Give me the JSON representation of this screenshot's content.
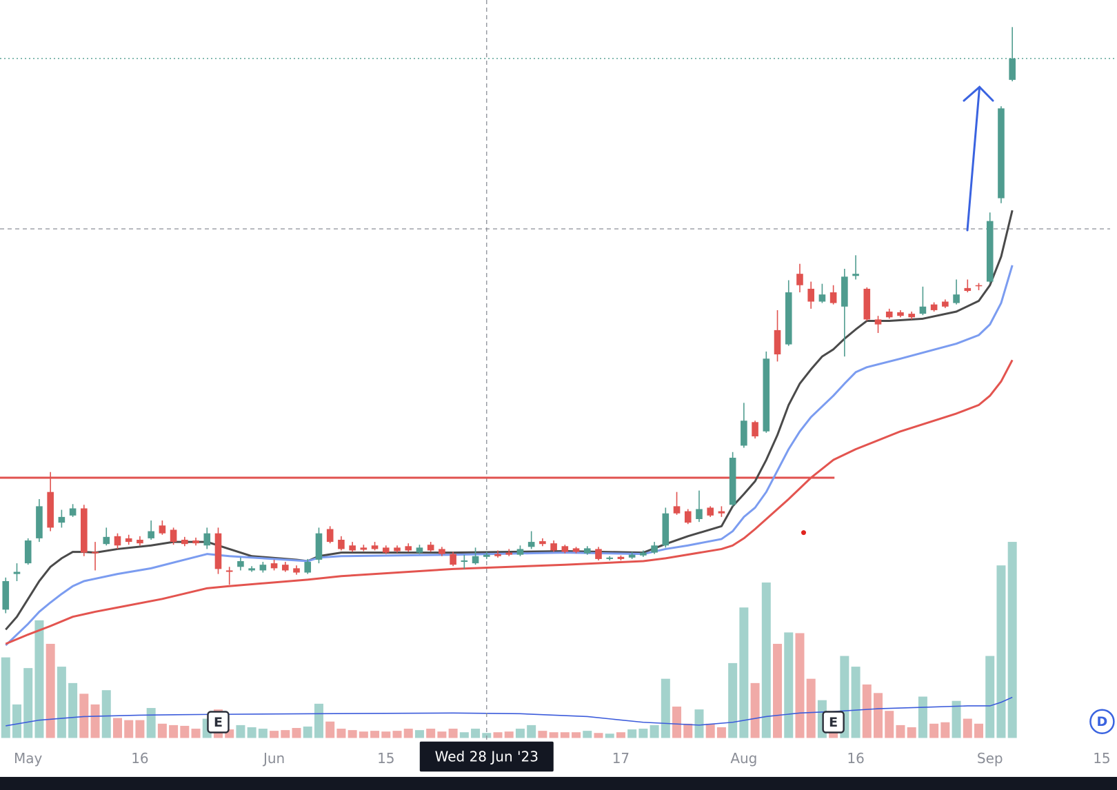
{
  "chart_data": {
    "type": "candlestick",
    "xlim": [
      -0.51,
      99.36
    ],
    "ylim": [
      0,
      104
    ],
    "xticks": [
      {
        "value": 2,
        "label": "May"
      },
      {
        "value": 12,
        "label": "16"
      },
      {
        "value": 24,
        "label": "Jun"
      },
      {
        "value": 34,
        "label": "15"
      },
      {
        "value": 55,
        "label": "17"
      },
      {
        "value": 66,
        "label": "Aug"
      },
      {
        "value": 76,
        "label": "16"
      },
      {
        "value": 88,
        "label": "Sep"
      },
      {
        "value": 98,
        "label": "15"
      }
    ],
    "up_color": "#4f9c8f",
    "down_color": "#e0524f",
    "open": [
      18.5,
      23.5,
      25,
      28.5,
      35,
      30.7,
      31.7,
      32.7,
      26.6,
      27.7,
      28.8,
      28.5,
      28.3,
      28.5,
      30.3,
      29.7,
      28.3,
      28.2,
      27.5,
      29.2,
      24,
      24.5,
      24,
      24,
      25,
      24.8,
      24.3,
      23.7,
      25.5,
      29.8,
      28.3,
      27.5,
      27.2,
      27.5,
      27.2,
      27.2,
      27.4,
      26.5,
      27.6,
      27,
      26.3,
      25.2,
      25,
      25.9,
      26.3,
      26.5,
      26.2,
      27.3,
      28.1,
      27.8,
      27.4,
      27.1,
      26.4,
      27,
      25.6,
      25.9,
      25.8,
      26.1,
      26.5,
      27.5,
      33,
      32.3,
      31.2,
      32.8,
      32.3,
      33.2,
      41.5,
      44.8,
      43.5,
      57.7,
      55.7,
      65.6,
      63.5,
      61.7,
      63,
      61,
      65.3,
      63.5,
      59.2,
      60.3,
      60.2,
      60,
      60,
      61.3,
      61.7,
      61.5,
      63.6,
      64,
      64.5,
      76.2,
      92.8
    ],
    "high": [
      23,
      25,
      28.5,
      34,
      37.8,
      32.5,
      33.3,
      33.2,
      28,
      30,
      29.2,
      29,
      28.8,
      31,
      31,
      30,
      28.7,
      28.6,
      30,
      30,
      24.5,
      25.8,
      24.6,
      25.2,
      25.5,
      25.2,
      24.7,
      25.6,
      30,
      30.2,
      28.8,
      28,
      27.6,
      28,
      27.5,
      27.5,
      27.8,
      27.6,
      28,
      27.3,
      26.6,
      26.2,
      27.2,
      26.6,
      26.8,
      27,
      27.5,
      29.5,
      28.5,
      28.2,
      27.6,
      27.3,
      27.4,
      27.3,
      26,
      26.1,
      26.6,
      26.8,
      28,
      32.8,
      35,
      32.6,
      35.2,
      33,
      33,
      40.6,
      47.5,
      45,
      54.7,
      60.5,
      64.7,
      67,
      64.5,
      64.2,
      64,
      66.3,
      68.2,
      63.7,
      59.7,
      60.7,
      60.5,
      60.3,
      63.8,
      61.6,
      62,
      64.8,
      64.8,
      64.3,
      74.2,
      89.1,
      100.2
    ],
    "low": [
      18,
      22.5,
      24.8,
      28,
      29.5,
      30,
      31.5,
      26,
      24,
      27.5,
      27,
      27.6,
      27.5,
      28.3,
      29,
      27.6,
      27.4,
      27.5,
      27,
      23.5,
      22,
      24,
      23.8,
      23.7,
      24,
      23.8,
      23.4,
      23.5,
      25,
      27.8,
      26.8,
      26.6,
      26.7,
      26.8,
      26.3,
      26.5,
      26.6,
      26.3,
      26.6,
      26,
      24.6,
      24.2,
      24.8,
      25.6,
      25.8,
      26,
      26,
      27,
      27.4,
      26.6,
      26.4,
      26.4,
      26.2,
      25.4,
      25.4,
      25.4,
      25.6,
      25.9,
      26.3,
      27.2,
      31.8,
      30.5,
      30.8,
      31.5,
      31.5,
      33,
      41.2,
      42.5,
      43.3,
      53.3,
      55.5,
      63,
      60.7,
      61.5,
      61.3,
      54,
      64.8,
      59,
      57.3,
      59.3,
      59.5,
      59.2,
      59.8,
      60.3,
      60.8,
      61.3,
      63,
      63.3,
      64.3,
      75.5,
      92.6
    ],
    "close": [
      22.5,
      23.8,
      28.2,
      33,
      30,
      31.5,
      32.7,
      26.5,
      26.4,
      28.7,
      27.5,
      28,
      27.8,
      29.5,
      29.2,
      28,
      27.7,
      27.8,
      29.2,
      24.2,
      23.8,
      25.3,
      24.3,
      24.8,
      24.3,
      24,
      23.7,
      25.2,
      29.2,
      28,
      27,
      26.8,
      26.9,
      27,
      26.5,
      26.7,
      26.8,
      27.2,
      26.8,
      26.3,
      24.8,
      25.4,
      26,
      26.2,
      26,
      26.2,
      27,
      28,
      27.7,
      26.8,
      26.6,
      26.6,
      27.1,
      25.6,
      25.8,
      25.6,
      26.2,
      26.5,
      27.5,
      32,
      32,
      30.7,
      32.6,
      31.7,
      32,
      39.8,
      45,
      42.8,
      53.7,
      54.3,
      63,
      64,
      61.7,
      62.7,
      61.5,
      65.2,
      65.6,
      59.2,
      58.5,
      59.5,
      59.7,
      59.5,
      61,
      60.5,
      61,
      62.7,
      63.2,
      63.9,
      73,
      88.8,
      95.8
    ],
    "moving_averages": [
      {
        "color": "#4a4a4a",
        "x": [
          0,
          1,
          2,
          3,
          4,
          5,
          6,
          7,
          8,
          10,
          13,
          15,
          18,
          20,
          22,
          26,
          27,
          28,
          30,
          40,
          50,
          57,
          59,
          61,
          64,
          65,
          66,
          67,
          68,
          69,
          70,
          71,
          72,
          73,
          74,
          75,
          76,
          77,
          79,
          82,
          85,
          87,
          88,
          89,
          90
        ],
        "values": [
          15.7,
          17.5,
          20,
          22.5,
          24.5,
          25.7,
          26.6,
          26.6,
          26.5,
          27,
          27.5,
          28,
          28,
          27,
          26,
          25.5,
          25.3,
          26,
          26.5,
          26.5,
          26.7,
          26.5,
          27.7,
          28.8,
          30.2,
          33,
          34.7,
          36.5,
          39.5,
          43,
          47.2,
          50.2,
          52.2,
          54,
          55,
          56.5,
          57.8,
          59,
          59,
          59.3,
          60.3,
          61.8,
          64,
          68,
          74.5
        ]
      },
      {
        "color": "#7b9cf0",
        "x": [
          0,
          1,
          2,
          3,
          4,
          5,
          6,
          7,
          10,
          13,
          16,
          18,
          20,
          24,
          27,
          28,
          30,
          40,
          50,
          57,
          59,
          61,
          64,
          65,
          66,
          67,
          68,
          69,
          70,
          71,
          72,
          73,
          74,
          75,
          76,
          77,
          80,
          85,
          87,
          88,
          89,
          90
        ],
        "values": [
          13.5,
          15,
          16.5,
          18.2,
          19.5,
          20.7,
          21.8,
          22.5,
          23.5,
          24.3,
          25.5,
          26.3,
          26,
          25.6,
          25.3,
          25.8,
          26,
          26.2,
          26.5,
          26.3,
          27,
          27.5,
          28.4,
          29.5,
          31.5,
          32.8,
          35,
          38,
          41,
          43.5,
          45.5,
          47,
          48.5,
          50.2,
          51.8,
          52.5,
          53.7,
          55.8,
          57,
          58.5,
          61.5,
          66.8
        ]
      },
      {
        "color": "#e3544f",
        "x": [
          0,
          2,
          4,
          6,
          8,
          10,
          14,
          18,
          20,
          27,
          30,
          40,
          50,
          57,
          59,
          64,
          65,
          66,
          67,
          68,
          70,
          72,
          74,
          76,
          80,
          85,
          87,
          88,
          89,
          90
        ],
        "values": [
          13.7,
          15,
          16.2,
          17.5,
          18.2,
          18.8,
          20,
          21.5,
          21.8,
          22.7,
          23.2,
          24.2,
          24.8,
          25.3,
          25.7,
          27,
          27.5,
          28.5,
          29.8,
          31.2,
          34,
          37,
          39.5,
          41,
          43.5,
          46,
          47.2,
          48.5,
          50.5,
          53.5
        ]
      }
    ],
    "levels": [
      {
        "value": 37,
        "color": "#e0524f",
        "x_end": 74.1
      }
    ],
    "last_price_color": "#4f9c8f",
    "volume": {
      "ylim": [
        0,
        1035
      ],
      "up_color": "#a3d2cc",
      "down_color": "#f0aaa7",
      "values": [
        113,
        47,
        98,
        165,
        132,
        100,
        77,
        62,
        47,
        67,
        28,
        25,
        25,
        42,
        20,
        18,
        17,
        13,
        27,
        40,
        12,
        18,
        15,
        13,
        10,
        11,
        14,
        16,
        48,
        23,
        13,
        11,
        9,
        10,
        9,
        10,
        13,
        11,
        13,
        9,
        13,
        8,
        13,
        7,
        8,
        9,
        13,
        18,
        10,
        8,
        8,
        8,
        10,
        7,
        6,
        8,
        12,
        13,
        18,
        83,
        44,
        20,
        40,
        20,
        15,
        105,
        183,
        77,
        218,
        132,
        148,
        147,
        83,
        53,
        35,
        115,
        100,
        75,
        63,
        38,
        18,
        15,
        58,
        20,
        22,
        52,
        27,
        20,
        115,
        242,
        275
      ],
      "average": {
        "color": "#3b5bdb",
        "x": [
          0,
          3,
          7,
          12,
          18,
          28,
          40,
          46,
          52,
          57,
          62,
          65,
          68,
          71,
          74,
          78,
          82,
          86,
          88,
          89,
          90
        ],
        "values": [
          17,
          25,
          30,
          32,
          33,
          34,
          35,
          34,
          30,
          22,
          18,
          22,
          30,
          35,
          37,
          41,
          43,
          45,
          45,
          50,
          57
        ]
      }
    },
    "crosshair": {
      "x": 43,
      "y": 71.9,
      "label": "Wed 28 Jun '23"
    },
    "events": [
      {
        "x": 19,
        "label": "E"
      },
      {
        "x": 74,
        "label": "E"
      }
    ],
    "interval_button": "D"
  }
}
